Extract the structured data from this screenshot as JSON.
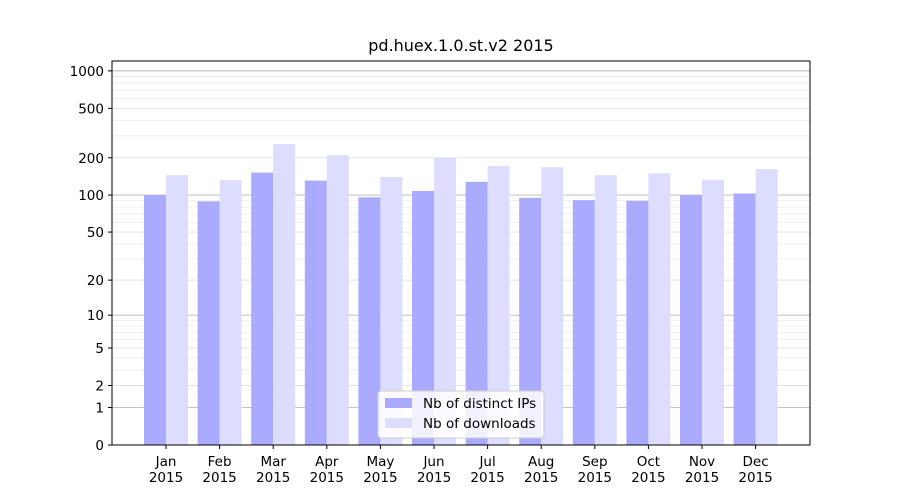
{
  "chart_data": {
    "type": "bar",
    "title": "pd.huex.1.0.st.v2 2015",
    "xlabel": "",
    "ylabel": "",
    "yscale": "log(1+y)",
    "ylim": [
      0,
      1200
    ],
    "yticks": [
      0,
      1,
      2,
      5,
      10,
      20,
      50,
      100,
      200,
      500,
      1000
    ],
    "grid": true,
    "legend_position": "bottom-center",
    "categories": [
      [
        "Jan",
        "2015"
      ],
      [
        "Feb",
        "2015"
      ],
      [
        "Mar",
        "2015"
      ],
      [
        "Apr",
        "2015"
      ],
      [
        "May",
        "2015"
      ],
      [
        "Jun",
        "2015"
      ],
      [
        "Jul",
        "2015"
      ],
      [
        "Aug",
        "2015"
      ],
      [
        "Sep",
        "2015"
      ],
      [
        "Oct",
        "2015"
      ],
      [
        "Nov",
        "2015"
      ],
      [
        "Dec",
        "2015"
      ]
    ],
    "series": [
      {
        "name": "Nb of distinct IPs",
        "color": "#aaaaff",
        "values": [
          100,
          89,
          152,
          131,
          96,
          108,
          128,
          95,
          91,
          90,
          100,
          103
        ]
      },
      {
        "name": "Nb of downloads",
        "color": "#ddddff",
        "values": [
          145,
          132,
          258,
          210,
          140,
          200,
          172,
          168,
          145,
          150,
          133,
          162
        ]
      }
    ]
  }
}
